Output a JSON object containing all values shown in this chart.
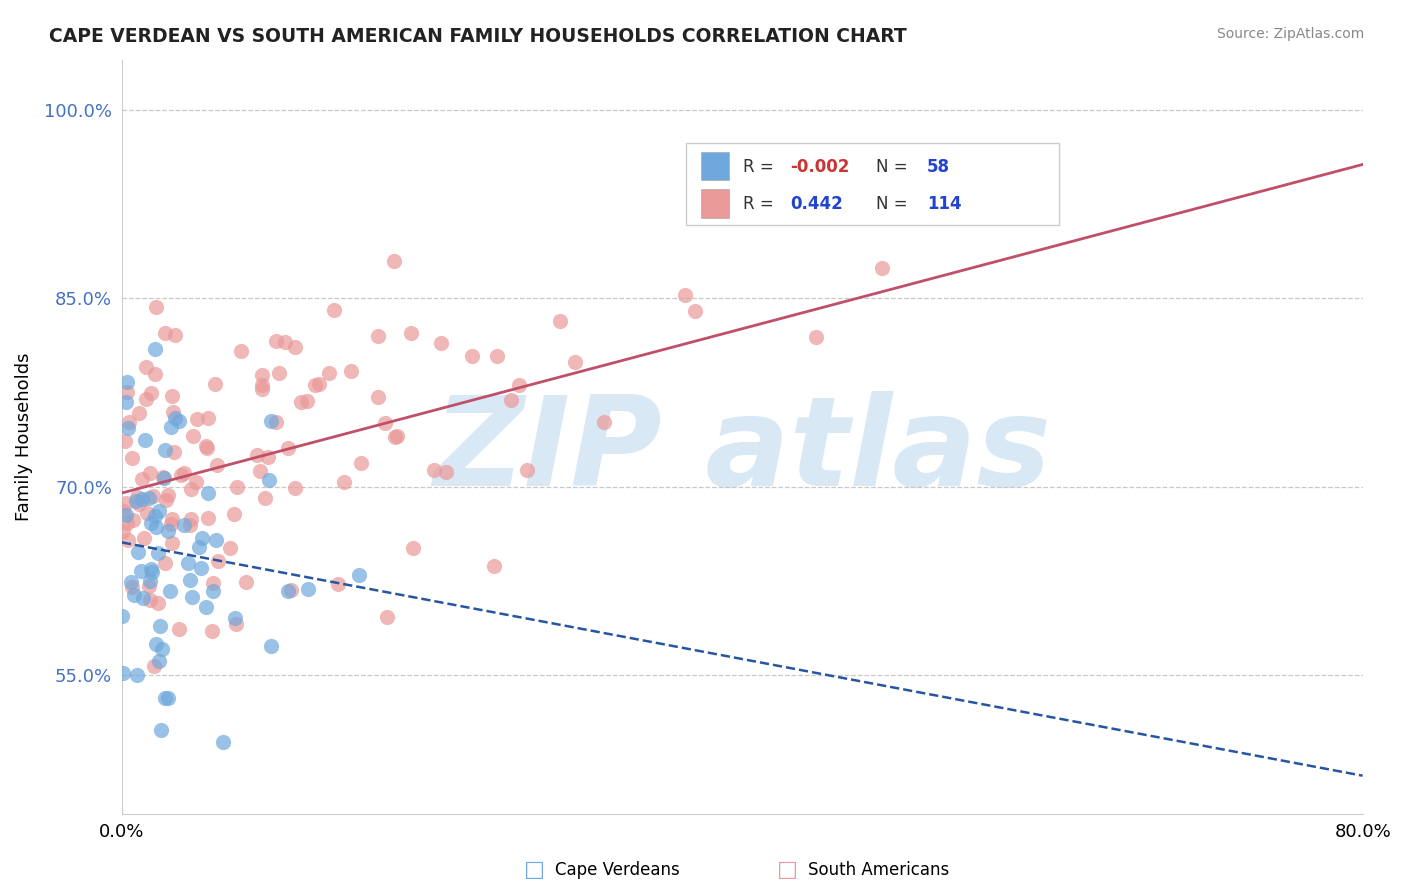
{
  "title": "CAPE VERDEAN VS SOUTH AMERICAN FAMILY HOUSEHOLDS CORRELATION CHART",
  "source": "Source: ZipAtlas.com",
  "ylabel": "Family Households",
  "color_blue": "#6fa8dc",
  "color_pink": "#ea9999",
  "color_blue_line": "#2855a0",
  "color_pink_line": "#c0506a",
  "watermark_color": "#d8e8f5",
  "ytick_values": [
    0.55,
    0.7,
    0.85,
    1.0
  ],
  "ytick_labels": [
    "55.0%",
    "70.0%",
    "85.0%",
    "100.0%"
  ],
  "xlim": [
    0.0,
    0.8
  ],
  "ylim": [
    0.44,
    1.04
  ],
  "r_cv": -0.002,
  "n_cv": 58,
  "r_sa": 0.442,
  "n_sa": 114
}
